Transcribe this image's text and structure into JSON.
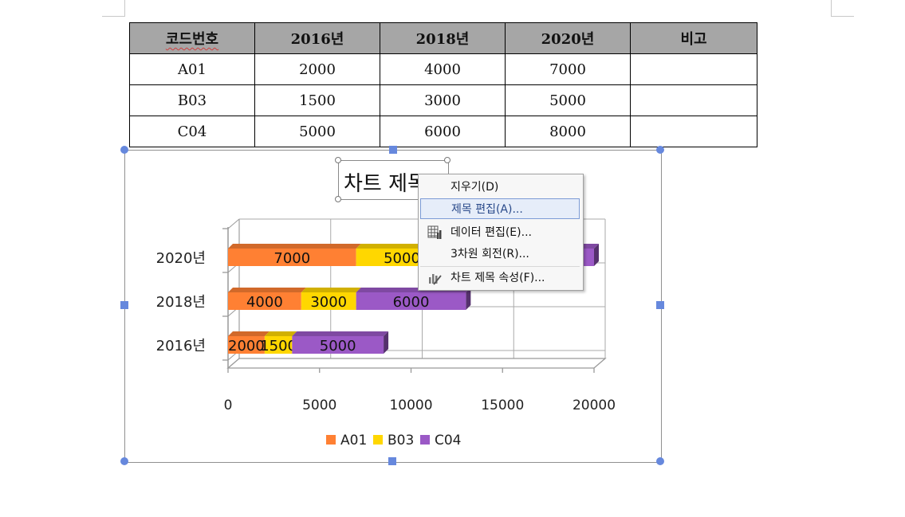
{
  "table": {
    "headers": [
      "코드번호",
      "2016년",
      "2018년",
      "2020년",
      "비고"
    ],
    "rows": [
      [
        "A01",
        "2000",
        "4000",
        "7000",
        ""
      ],
      [
        "B03",
        "1500",
        "3000",
        "5000",
        ""
      ],
      [
        "C04",
        "5000",
        "6000",
        "8000",
        ""
      ]
    ]
  },
  "chart": {
    "title_text": "차트 제목"
  },
  "chart_data": {
    "type": "bar",
    "orientation": "horizontal",
    "stacked": true,
    "three_d": true,
    "categories": [
      "2016년",
      "2018년",
      "2020년"
    ],
    "series": [
      {
        "name": "A01",
        "values": [
          2000,
          4000,
          7000
        ],
        "color": "#ff8033"
      },
      {
        "name": "B03",
        "values": [
          1500,
          3000,
          5000
        ],
        "color": "#ffd700"
      },
      {
        "name": "C04",
        "values": [
          5000,
          6000,
          8000
        ],
        "color": "#9b59c6"
      }
    ],
    "x_ticks": [
      "0",
      "5000",
      "10000",
      "15000",
      "20000"
    ],
    "xlim": [
      0,
      20000
    ],
    "grid": true,
    "legend_position": "bottom"
  },
  "context_menu": {
    "items": [
      {
        "label": "지우기(D)",
        "icon": ""
      },
      {
        "label": "제목 편집(A)...",
        "icon": ""
      },
      {
        "label": "데이터 편집(E)...",
        "icon": "data-grid-icon"
      },
      {
        "label": "3차원 회전(R)...",
        "icon": ""
      },
      {
        "label": "차트 제목 속성(F)...",
        "icon": "chart-properties-icon"
      }
    ]
  }
}
